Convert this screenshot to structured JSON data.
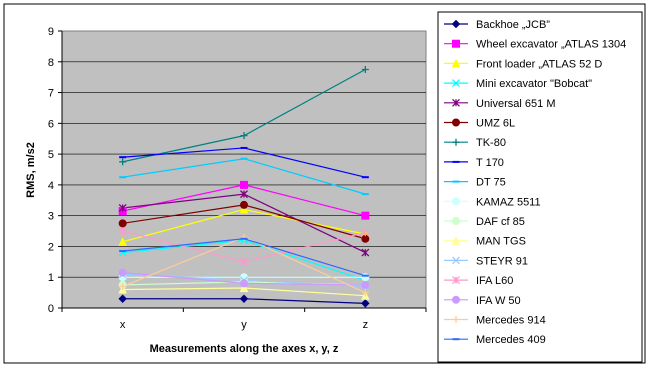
{
  "chart_data": {
    "type": "line",
    "categories": [
      "x",
      "y",
      "z"
    ],
    "xlabel": "Measurements along the axes x, y, z",
    "ylabel": "RMS, m/s2",
    "ylim": [
      0,
      9
    ],
    "yticks": [
      0,
      1,
      2,
      3,
      4,
      5,
      6,
      7,
      8,
      9
    ],
    "grid": true,
    "plot_background": "#c0c0c0",
    "legend_position": "right",
    "series": [
      {
        "name": "Backhoe „JCB”",
        "values": [
          0.3,
          0.3,
          0.15
        ],
        "color": "#000080",
        "marker": "diamond"
      },
      {
        "name": "Wheel excavator   „ATLAS 1304",
        "values": [
          3.15,
          4.0,
          3.0
        ],
        "color": "#ff00ff",
        "marker": "square"
      },
      {
        "name": "Front loader   „ATLAS 52 D",
        "values": [
          2.15,
          3.2,
          2.4
        ],
        "color": "#ffff00",
        "marker": "triangle"
      },
      {
        "name": "Mini excavator \"Bobcat\"",
        "values": [
          1.8,
          2.2,
          0.9
        ],
        "color": "#00ffff",
        "marker": "x"
      },
      {
        "name": "Universal  651 M",
        "values": [
          3.25,
          3.7,
          1.8
        ],
        "color": "#800080",
        "marker": "star"
      },
      {
        "name": "UMZ 6L",
        "values": [
          2.75,
          3.35,
          2.25
        ],
        "color": "#800000",
        "marker": "circle"
      },
      {
        "name": "TK-80",
        "values": [
          4.75,
          5.6,
          7.75
        ],
        "color": "#008080",
        "marker": "plus"
      },
      {
        "name": "T 170",
        "values": [
          4.9,
          5.2,
          4.25
        ],
        "color": "#0000ff",
        "marker": "dash"
      },
      {
        "name": "DT 75",
        "values": [
          4.25,
          4.85,
          3.7
        ],
        "color": "#00ccff",
        "marker": "dash"
      },
      {
        "name": "KAMAZ 5511",
        "values": [
          1.0,
          1.0,
          1.0
        ],
        "color": "#ccffff",
        "marker": "circle"
      },
      {
        "name": "DAF cf 85",
        "values": [
          0.75,
          0.85,
          0.75
        ],
        "color": "#ccffcc",
        "marker": "circle"
      },
      {
        "name": "MAN TGS",
        "values": [
          0.6,
          0.65,
          0.4
        ],
        "color": "#ffff99",
        "marker": "triangle"
      },
      {
        "name": "STEYR 91",
        "values": [
          1.1,
          0.9,
          0.7
        ],
        "color": "#99ccff",
        "marker": "x"
      },
      {
        "name": "IFA L60",
        "values": [
          2.5,
          1.5,
          2.45
        ],
        "color": "#ff99cc",
        "marker": "star"
      },
      {
        "name": "IFA W 50",
        "values": [
          1.15,
          0.8,
          0.75
        ],
        "color": "#cc99ff",
        "marker": "circle"
      },
      {
        "name": "Mercedes 914",
        "values": [
          0.7,
          2.3,
          0.5
        ],
        "color": "#ffcc99",
        "marker": "plus"
      },
      {
        "name": "Mercedes 409",
        "values": [
          1.85,
          2.25,
          1.05
        ],
        "color": "#3366ff",
        "marker": "dash"
      }
    ]
  }
}
